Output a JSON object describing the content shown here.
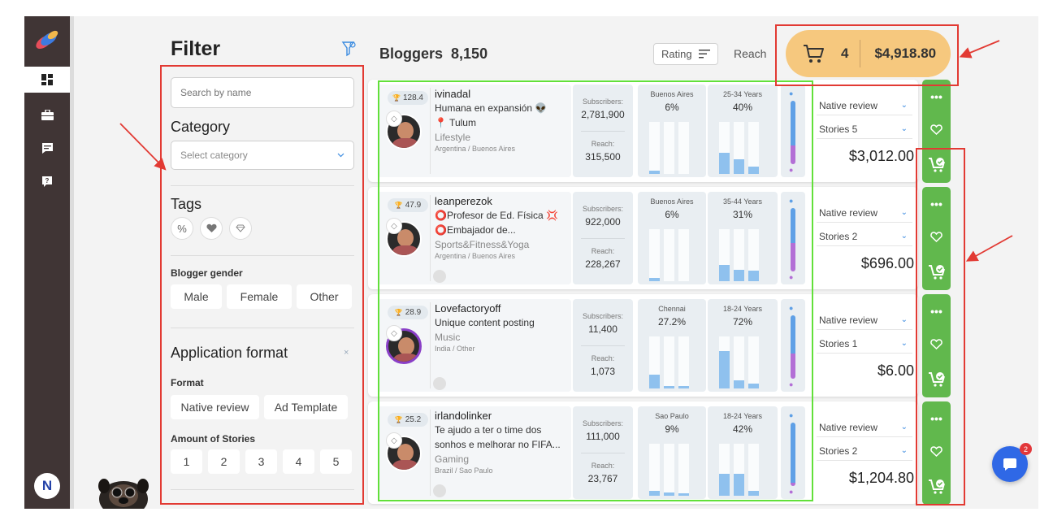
{
  "filter": {
    "title": "Filter",
    "search_placeholder": "Search by name",
    "category_title": "Category",
    "category_placeholder": "Select category",
    "tags_title": "Tags",
    "tag_percent": "%",
    "gender_title": "Blogger gender",
    "gender_options": [
      "Male",
      "Female",
      "Other"
    ],
    "app_format_title": "Application format",
    "app_format_close": "×",
    "format_label": "Format",
    "format_options": [
      "Native review",
      "Ad Template"
    ],
    "stories_label": "Amount of Stories",
    "stories_options": [
      "1",
      "2",
      "3",
      "4",
      "5"
    ]
  },
  "header": {
    "bloggers_label": "Bloggers",
    "bloggers_count": "8,150",
    "sort_label": "Rating",
    "reach_label": "Reach",
    "cart_count": "4",
    "cart_total": "$4,918.80"
  },
  "user": {
    "initial": "N"
  },
  "chat": {
    "badge": "2"
  },
  "labels": {
    "subscribers": "Subscribers:",
    "reach": "Reach:"
  },
  "bloggers": [
    {
      "rank": "128.4",
      "username": "ivinadal",
      "bio_line1": "Humana en expansión 👽",
      "bio_line2": "📍 Tulum",
      "category": "Lifestyle",
      "location": "Argentina / Buenos Aires",
      "subscribers": "2,781,900",
      "reach": "315,500",
      "city": "Buenos Aires",
      "city_pct": "6%",
      "city_bars": [
        0.06,
        0,
        0
      ],
      "age_range": "25-34 Years",
      "age_pct": "40%",
      "age_bars": [
        0.4,
        0.28,
        0.14
      ],
      "male_share": 0.7,
      "female_share": 0.3,
      "format": "Native review",
      "stories": "Stories 5",
      "price": "$3,012.00"
    },
    {
      "rank": "47.9",
      "username": "leanperezok",
      "bio_line1": "⭕Profesor de Ed. Física 💢",
      "bio_line2": "⭕Embajador de...",
      "category": "Sports&Fitness&Yoga",
      "location": "Argentina / Buenos Aires",
      "subscribers": "922,000",
      "reach": "228,267",
      "city": "Buenos Aires",
      "city_pct": "6%",
      "city_bars": [
        0.06,
        0,
        0
      ],
      "age_range": "35-44 Years",
      "age_pct": "31%",
      "age_bars": [
        0.31,
        0.22,
        0.2
      ],
      "male_share": 0.55,
      "female_share": 0.45,
      "format": "Native review",
      "stories": "Stories 2",
      "price": "$696.00"
    },
    {
      "rank": "28.9",
      "username": "Lovefactoryoff",
      "bio_line1": "Unique content posting",
      "bio_line2": "",
      "category": "Music",
      "location": "India / Other",
      "subscribers": "11,400",
      "reach": "1,073",
      "city": "Chennai",
      "city_pct": "27.2%",
      "city_bars": [
        0.27,
        0.05,
        0.05
      ],
      "age_range": "18-24 Years",
      "age_pct": "72%",
      "age_bars": [
        0.72,
        0.16,
        0.1
      ],
      "male_share": 0.6,
      "female_share": 0.4,
      "format": "Native review",
      "stories": "Stories 1",
      "price": "$6.00"
    },
    {
      "rank": "25.2",
      "username": "irlandolinker",
      "bio_line1": "Te ajudo a ter o time dos",
      "bio_line2": "sonhos e melhorar no FIFA...",
      "category": "Gaming",
      "location": "Brazil / Sao Paulo",
      "subscribers": "111,000",
      "reach": "23,767",
      "city": "Sao Paulo",
      "city_pct": "9%",
      "city_bars": [
        0.09,
        0.06,
        0.05
      ],
      "age_range": "18-24 Years",
      "age_pct": "42%",
      "age_bars": [
        0.42,
        0.42,
        0.1
      ],
      "male_share": 0.95,
      "female_share": 0.05,
      "format": "Native review",
      "stories": "Stories 2",
      "price": "$1,204.80"
    }
  ],
  "colors": {
    "rail": "#403535",
    "accent_green": "#61b84d",
    "cart": "#f6c87e",
    "bar_blue": "#8fc1ee",
    "male": "#5fa0e6",
    "female": "#b36fd6",
    "annotation_red": "#e23a33",
    "annotation_green": "#62e03a"
  }
}
